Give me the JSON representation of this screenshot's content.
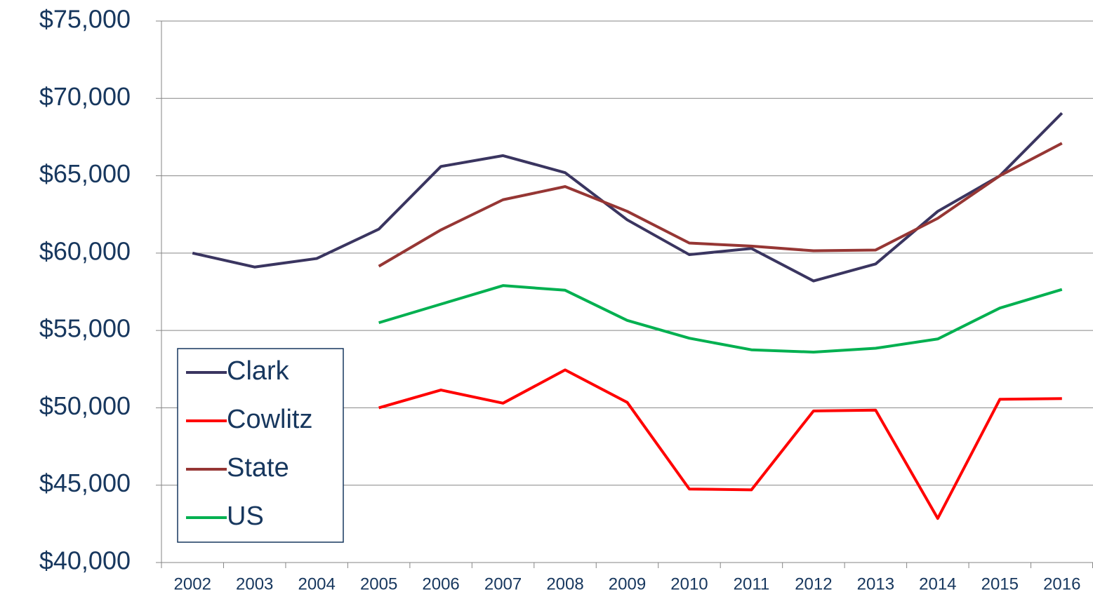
{
  "chart_data": {
    "type": "line",
    "categories": [
      "2002",
      "2003",
      "2004",
      "2005",
      "2006",
      "2007",
      "2008",
      "2009",
      "2010",
      "2011",
      "2012",
      "2013",
      "2014",
      "2015",
      "2016"
    ],
    "series": [
      {
        "name": "Clark",
        "color": "#3a3560",
        "values": [
          60000,
          59100,
          59650,
          61550,
          65600,
          66300,
          65200,
          62150,
          59900,
          60300,
          58200,
          59300,
          62700,
          65000,
          69050
        ]
      },
      {
        "name": "Cowlitz",
        "color": "#ff0000",
        "values": [
          null,
          null,
          null,
          50000,
          51150,
          50300,
          52450,
          50350,
          44750,
          44700,
          49800,
          49850,
          42850,
          50550,
          50600
        ]
      },
      {
        "name": "State",
        "color": "#963634",
        "values": [
          null,
          null,
          null,
          59150,
          61500,
          63450,
          64300,
          62700,
          60650,
          60450,
          60150,
          60200,
          62250,
          65000,
          67100
        ]
      },
      {
        "name": "US",
        "color": "#00b050",
        "values": [
          null,
          null,
          null,
          55500,
          56700,
          57900,
          57600,
          55650,
          54500,
          53750,
          53600,
          53850,
          54450,
          56450,
          57650
        ]
      }
    ],
    "ylim": [
      40000,
      75000
    ],
    "yticks": [
      {
        "value": 40000,
        "label": "$40,000"
      },
      {
        "value": 45000,
        "label": "$45,000"
      },
      {
        "value": 50000,
        "label": "$50,000"
      },
      {
        "value": 55000,
        "label": "$55,000"
      },
      {
        "value": 60000,
        "label": "$60,000"
      },
      {
        "value": 65000,
        "label": "$65,000"
      },
      {
        "value": 70000,
        "label": "$70,000"
      },
      {
        "value": 75000,
        "label": "$75,000"
      }
    ],
    "grid": true,
    "legend": "lower-left"
  }
}
